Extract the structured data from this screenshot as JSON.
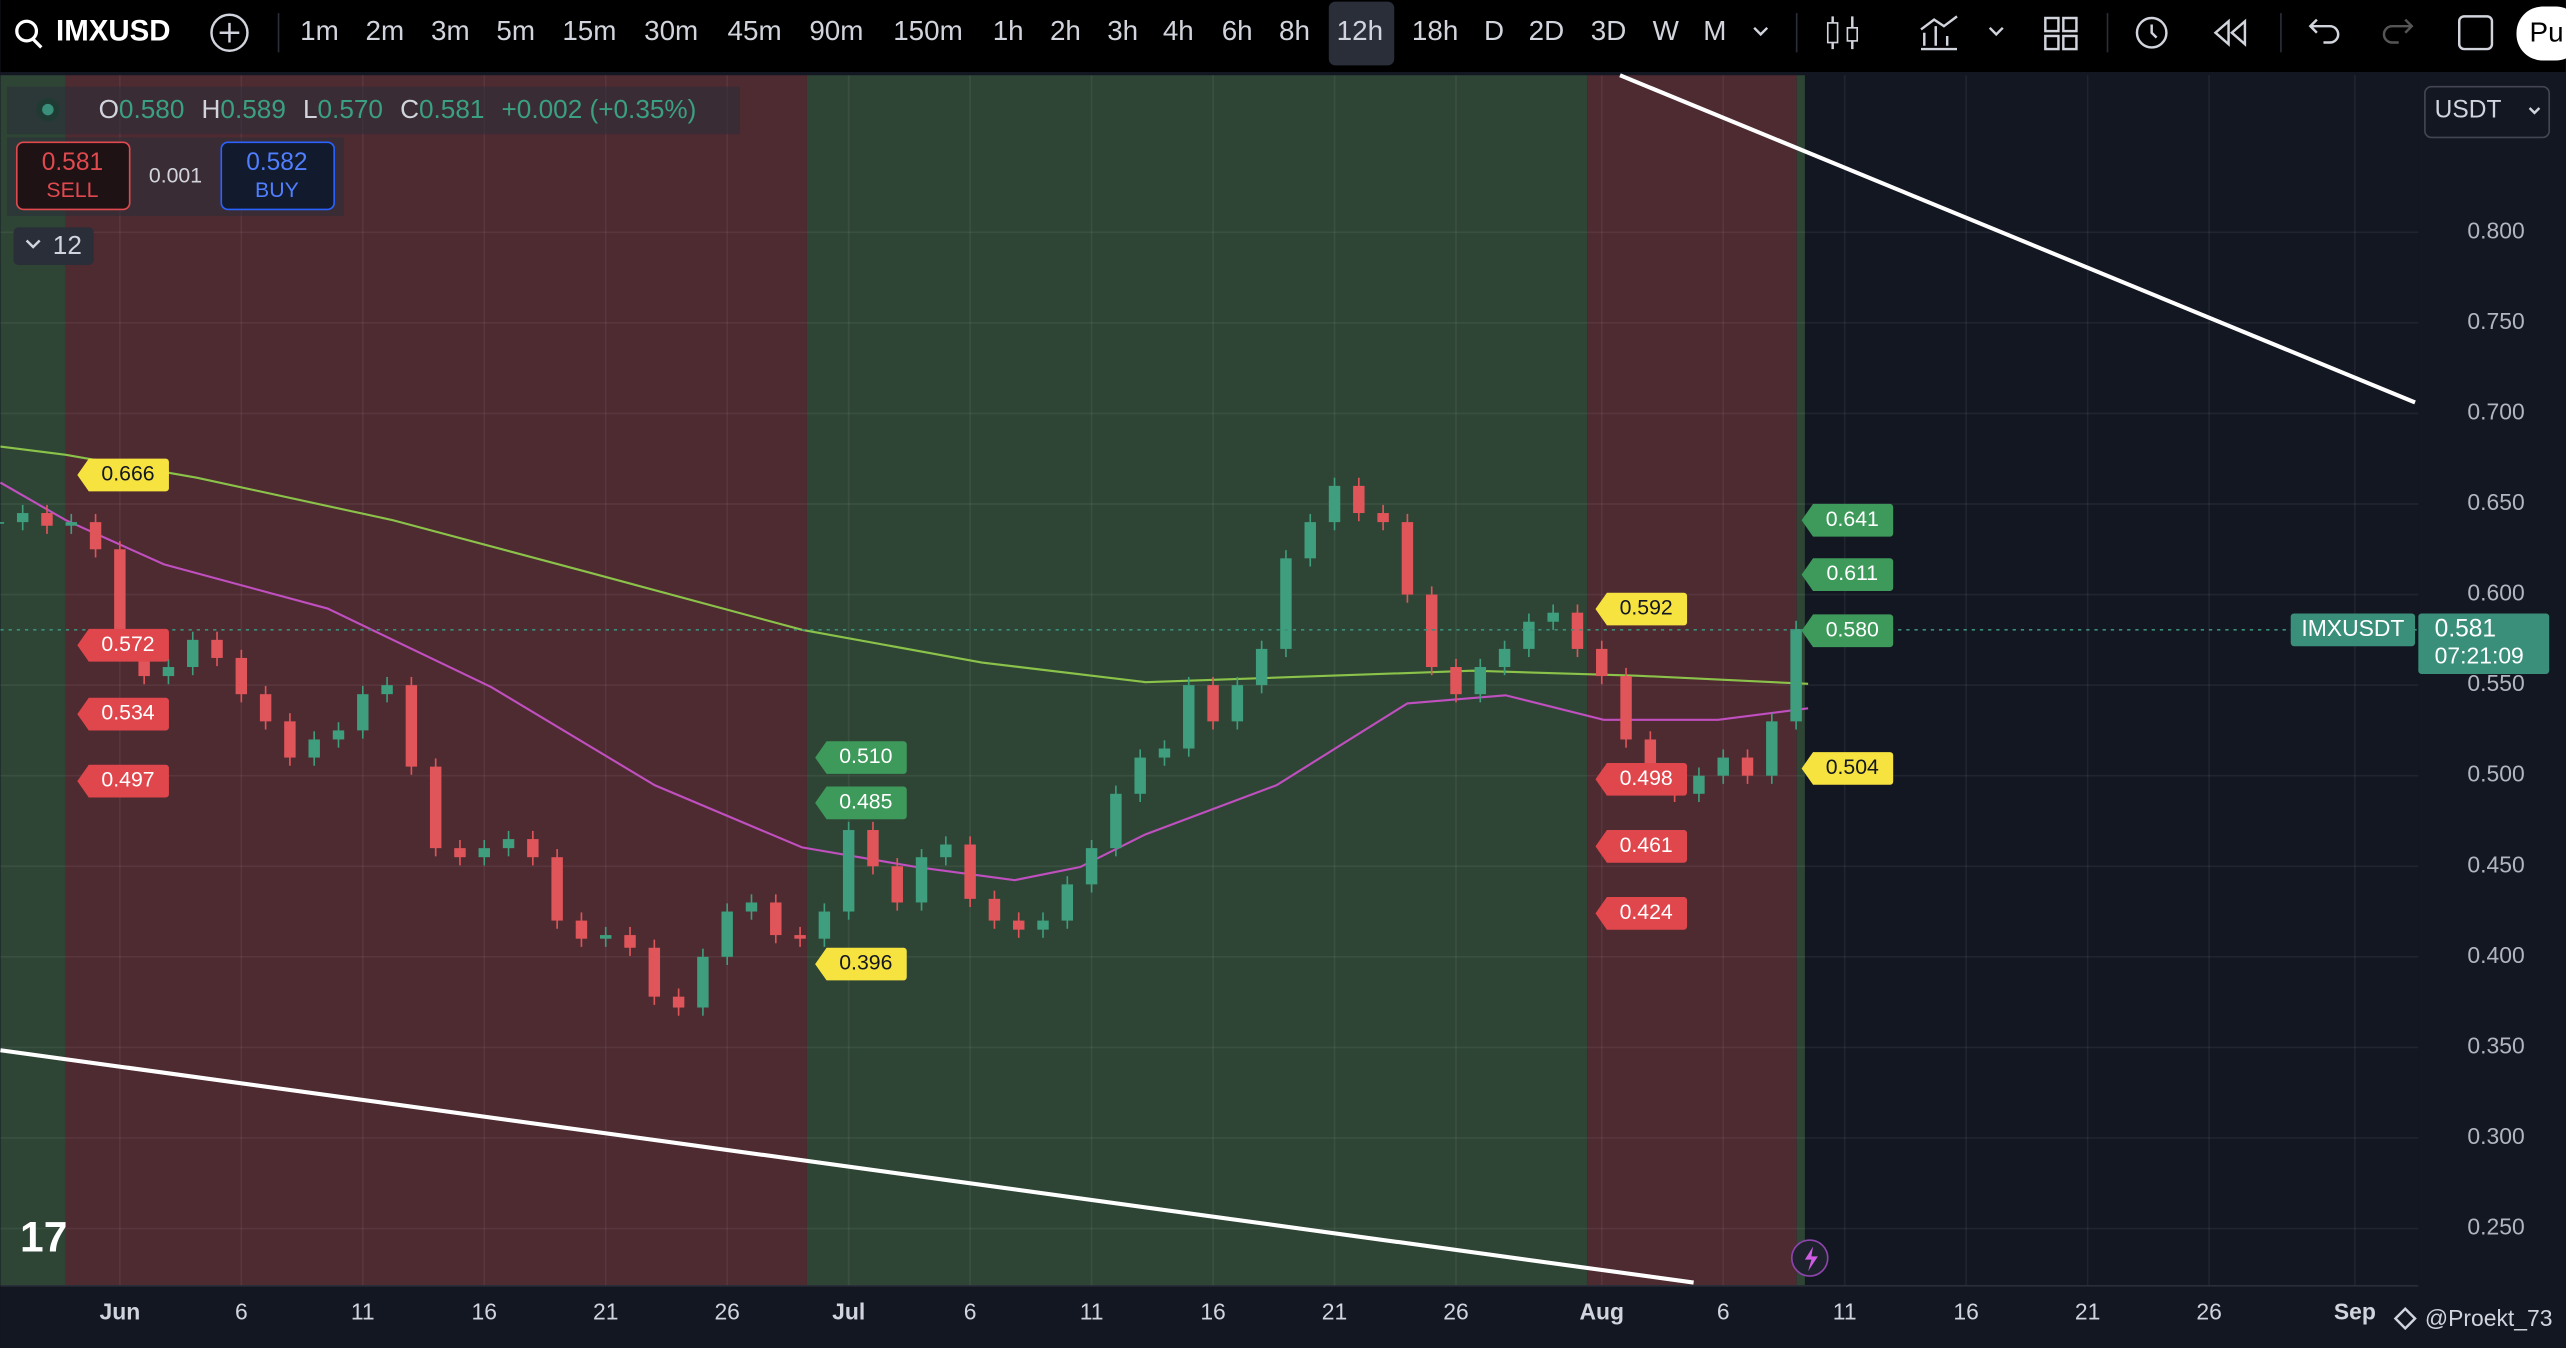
{
  "toolbar": {
    "symbol": "IMXUSD",
    "intervals": [
      "1m",
      "2m",
      "3m",
      "5m",
      "15m",
      "30m",
      "45m",
      "90m",
      "150m",
      "1h",
      "2h",
      "3h",
      "4h",
      "6h",
      "8h",
      "12h",
      "18h",
      "D",
      "2D",
      "3D",
      "W",
      "M"
    ],
    "publish": "Pu"
  },
  "legend": {
    "o_label": "O",
    "o": "0.580",
    "h_label": "H",
    "h": "0.589",
    "l_label": "L",
    "l": "0.570",
    "c_label": "C",
    "c": "0.581",
    "change": "+0.002 (+0.35%)"
  },
  "trade": {
    "sell_price": "0.581",
    "sell": "SELL",
    "spread": "0.001",
    "buy_price": "0.582",
    "buy": "BUY"
  },
  "indicators_count": "12",
  "currency": "USDT",
  "price_axis": [
    "0.800",
    "0.750",
    "0.700",
    "0.650",
    "0.600",
    "0.550",
    "0.500",
    "0.450",
    "0.400",
    "0.350",
    "0.300",
    "0.250"
  ],
  "date_axis": [
    "Jun",
    "6",
    "11",
    "16",
    "21",
    "26",
    "Jul",
    "6",
    "11",
    "16",
    "21",
    "26",
    "Aug",
    "6",
    "11",
    "16",
    "21",
    "26",
    "Sep"
  ],
  "candles": {
    "close": [
      0.64,
      0.645,
      0.638,
      0.64,
      0.625,
      0.572,
      0.555,
      0.56,
      0.575,
      0.565,
      0.545,
      0.53,
      0.51,
      0.52,
      0.525,
      0.545,
      0.55,
      0.505,
      0.46,
      0.455,
      0.46,
      0.465,
      0.455,
      0.42,
      0.41,
      0.412,
      0.405,
      0.378,
      0.372,
      0.4,
      0.425,
      0.43,
      0.412,
      0.41,
      0.425,
      0.47,
      0.45,
      0.43,
      0.455,
      0.462,
      0.432,
      0.42,
      0.415,
      0.42,
      0.44,
      0.46,
      0.49,
      0.51,
      0.515,
      0.55,
      0.53,
      0.55,
      0.57,
      0.62,
      0.64,
      0.66,
      0.645,
      0.64,
      0.6,
      0.56,
      0.545,
      0.56,
      0.57,
      0.585,
      0.59,
      0.57,
      0.555,
      0.52,
      0.5,
      0.49,
      0.5,
      0.51,
      0.5,
      0.53,
      0.581
    ]
  },
  "levels": [
    {
      "text": "0.666",
      "color": "yellow"
    },
    {
      "text": "0.572",
      "color": "red"
    },
    {
      "text": "0.534",
      "color": "red"
    },
    {
      "text": "0.497",
      "color": "red"
    },
    {
      "text": "0.510",
      "color": "green"
    },
    {
      "text": "0.485",
      "color": "green"
    },
    {
      "text": "0.396",
      "color": "yellow"
    },
    {
      "text": "0.592",
      "color": "yellow"
    },
    {
      "text": "0.498",
      "color": "red"
    },
    {
      "text": "0.461",
      "color": "red"
    },
    {
      "text": "0.424",
      "color": "red"
    },
    {
      "text": "0.641",
      "color": "green"
    },
    {
      "text": "0.611",
      "color": "green"
    },
    {
      "text": "0.580",
      "color": "green"
    },
    {
      "text": "0.504",
      "color": "yellow"
    }
  ],
  "last_price": {
    "symbol": "IMXUSDT",
    "price": "0.581",
    "countdown": "07:21:09"
  },
  "watermark": "@Proekt_73"
}
